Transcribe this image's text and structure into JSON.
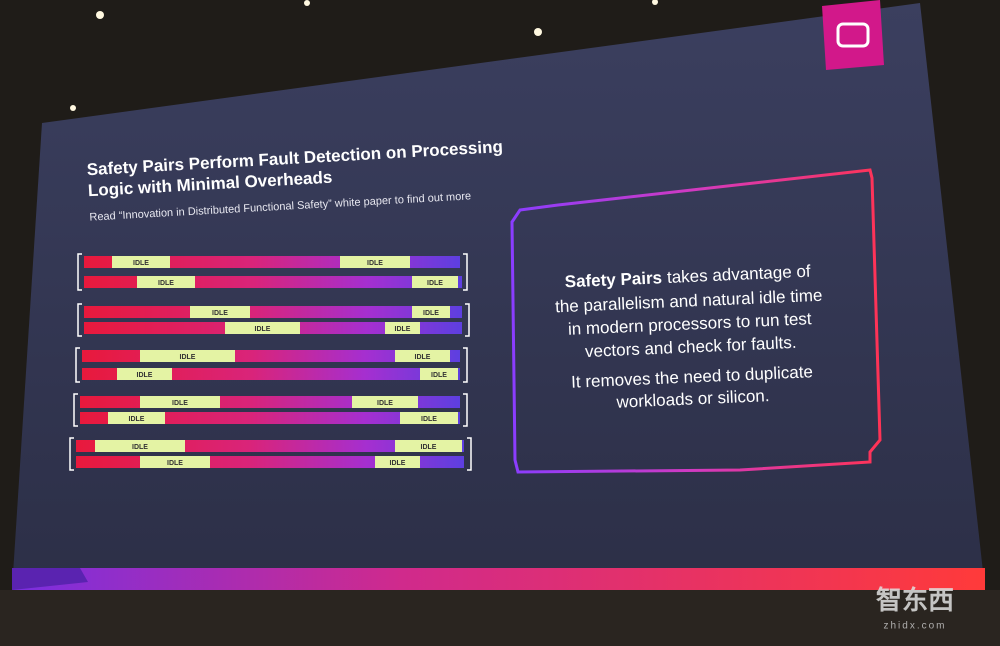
{
  "slide": {
    "title": [
      "Safety Pairs Perform Fault Detection on Processing",
      "Logic with Minimal Overheads"
    ],
    "subtitle": "Read “Innovation in Distributed Functional Safety” white paper to find out more",
    "pairs": [
      {
        "bars": [
          {
            "idle_labels": [
              "IDLE",
              "IDLE"
            ]
          },
          {
            "idle_labels": [
              "IDLE",
              "IDLE"
            ]
          }
        ]
      },
      {
        "bars": [
          {
            "idle_labels": [
              "IDLE",
              "IDLE"
            ]
          },
          {
            "idle_labels": [
              "IDLE",
              "IDLE"
            ]
          }
        ]
      },
      {
        "bars": [
          {
            "idle_labels": [
              "IDLE",
              "IDLE"
            ]
          },
          {
            "idle_labels": [
              "IDLE",
              "IDLE"
            ]
          }
        ]
      },
      {
        "bars": [
          {
            "idle_labels": [
              "IDLE",
              "IDLE"
            ]
          },
          {
            "idle_labels": [
              "IDLE",
              "IDLE"
            ]
          }
        ]
      },
      {
        "bars": [
          {
            "idle_labels": [
              "IDLE",
              "IDLE"
            ]
          },
          {
            "idle_labels": [
              "IDLE",
              "IDLE"
            ]
          }
        ]
      }
    ],
    "callout": {
      "bold": "Safety Pairs",
      "lines": [
        "takes advantage of",
        "the parallelism and natural idle time",
        "in modern processors to run test",
        "vectors and check for faults."
      ],
      "second": [
        "It removes the need to duplicate",
        "workloads or silicon."
      ]
    }
  },
  "watermark": {
    "brand": "智东西",
    "url": "zhidx.com"
  }
}
